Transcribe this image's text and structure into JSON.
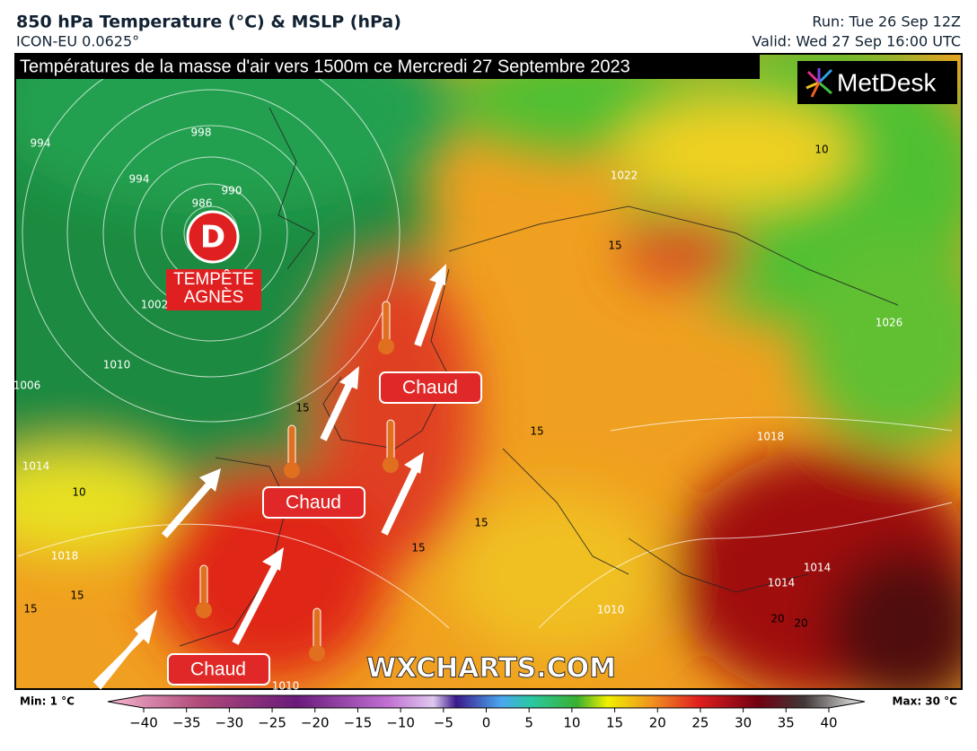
{
  "header": {
    "title": "850 hPa Temperature (°C) & MSLP (hPa)",
    "model": "ICON-EU 0.0625°",
    "run": "Run: Tue 26 Sep 12Z",
    "valid": "Valid: Wed 27 Sep 16:00 UTC"
  },
  "map": {
    "banner": "Températures de la masse d'air vers 1500m ce Mercredi 27 Septembre 2023",
    "logo": "MetDesk",
    "watermark": "WXCHARTS.COM",
    "storm_symbol": "D",
    "storm_name": [
      "TEMPÊTE",
      "AGNÈS"
    ],
    "labels": [
      "Chaud",
      "Chaud",
      "Chaud"
    ],
    "contour_labels": [
      "994",
      "998",
      "994",
      "986",
      "990",
      "1002",
      "1010",
      "1006",
      "1014",
      "10",
      "1018",
      "15",
      "15",
      "15",
      "15",
      "15",
      "15",
      "10",
      "15",
      "1018",
      "1014",
      "1014",
      "20",
      "20",
      "1010",
      "1010",
      "1022",
      "1026"
    ]
  },
  "colorbar": {
    "min": "Min: 1 °C",
    "max": "Max: 30 °C",
    "lim": [
      -40,
      40
    ],
    "ticks": [
      {
        "value": -40,
        "label": "−40"
      },
      {
        "value": -35,
        "label": "−35"
      },
      {
        "value": -30,
        "label": "−30"
      },
      {
        "value": -25,
        "label": "−25"
      },
      {
        "value": -20,
        "label": "−20"
      },
      {
        "value": -15,
        "label": "−15"
      },
      {
        "value": -10,
        "label": "−10"
      },
      {
        "value": -5,
        "label": "−5"
      },
      0,
      5,
      10,
      15,
      20,
      25,
      30,
      35,
      40
    ]
  }
}
